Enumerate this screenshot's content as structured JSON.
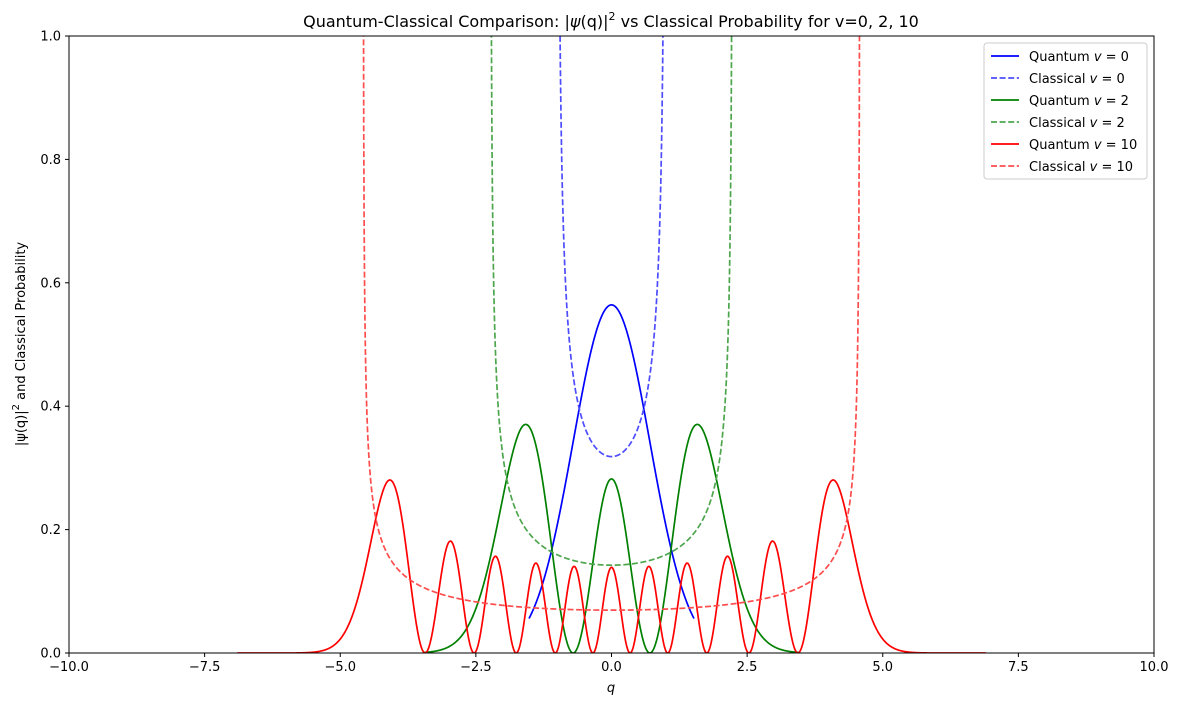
{
  "chart_data": {
    "type": "line",
    "title_prefix": "Quantum-Classical Comparison: |",
    "title_psi": "ψ",
    "title_q": "(q)|",
    "title_sup": "2",
    "title_suffix": " vs Classical Probability for v=0, 2, 10",
    "xlabel": "q",
    "ylabel_prefix": "|ψ(q)|",
    "ylabel_sup": "2",
    "ylabel_suffix": " and Classical Probability",
    "xlim": [
      -10,
      10
    ],
    "ylim": [
      0,
      1
    ],
    "xticks": [
      -10,
      -7.5,
      -5,
      -2.5,
      0,
      2.5,
      5,
      7.5,
      10
    ],
    "xtick_labels": [
      "−10.0",
      "−7.5",
      "−5.0",
      "−2.5",
      "0.0",
      "2.5",
      "5.0",
      "7.5",
      "10.0"
    ],
    "yticks": [
      0,
      0.2,
      0.4,
      0.6,
      0.8,
      1.0
    ],
    "ytick_labels": [
      "0.0",
      "0.2",
      "0.4",
      "0.6",
      "0.8",
      "1.0"
    ],
    "grid": false,
    "legend_position": "top-right",
    "series": [
      {
        "name": "Quantum v = 0",
        "kind": "quantum",
        "v": 0,
        "color": "#0000ff",
        "style": "solid",
        "q_range": [
          -1.52,
          1.52
        ],
        "peak": 0.564
      },
      {
        "name": "Classical v = 0",
        "kind": "classical",
        "v": 0,
        "color": "#4d4dff",
        "style": "dashed",
        "turning_point": 1.0,
        "minimum": 0.318
      },
      {
        "name": "Quantum v = 2",
        "kind": "quantum",
        "v": 2,
        "color": "#008000",
        "style": "solid",
        "q_range": [
          -3.45,
          3.45
        ],
        "peak": 0.371
      },
      {
        "name": "Classical v = 2",
        "kind": "classical",
        "v": 2,
        "color": "#4da64d",
        "style": "dashed",
        "turning_point": 2.236,
        "minimum": 0.142
      },
      {
        "name": "Quantum v = 10",
        "kind": "quantum",
        "v": 10,
        "color": "#ff0000",
        "style": "solid",
        "q_range": [
          -6.9,
          6.9
        ],
        "peak": 0.281
      },
      {
        "name": "Classical v = 10",
        "kind": "classical",
        "v": 10,
        "color": "#ff4d4d",
        "style": "dashed",
        "turning_point": 4.583,
        "minimum": 0.069
      }
    ],
    "legend": [
      {
        "prefix": "Quantum ",
        "var": "v",
        "value": " = 0"
      },
      {
        "prefix": "Classical ",
        "var": "v",
        "value": " = 0"
      },
      {
        "prefix": "Quantum ",
        "var": "v",
        "value": " = 2"
      },
      {
        "prefix": "Classical ",
        "var": "v",
        "value": " = 2"
      },
      {
        "prefix": "Quantum ",
        "var": "v",
        "value": " = 10"
      },
      {
        "prefix": "Classical ",
        "var": "v",
        "value": " = 10"
      }
    ]
  }
}
